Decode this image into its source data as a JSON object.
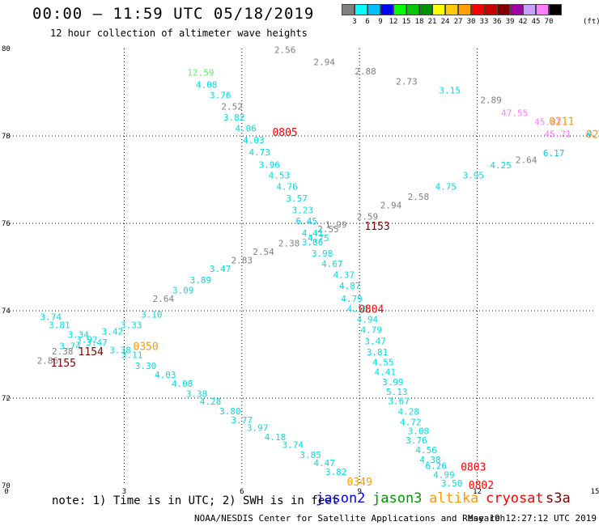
{
  "header": {
    "title": "00:00 – 11:59 UTC 05/18/2019",
    "subtitle": "12 hour collection of altimeter wave heights"
  },
  "scale": {
    "colors": [
      "#808080",
      "#00ffff",
      "#00bfff",
      "#0000ff",
      "#00ff00",
      "#00c800",
      "#009000",
      "#ffff00",
      "#ffc800",
      "#ffa000",
      "#ff0000",
      "#c80000",
      "#800000",
      "#a000a0",
      "#c8a0ff",
      "#ff80ff",
      "#000000"
    ],
    "labels": [
      "3",
      "6",
      "9",
      "12",
      "15",
      "18",
      "21",
      "24",
      "27",
      "30",
      "33",
      "36",
      "39",
      "42",
      "45",
      "70"
    ],
    "unit": "(ft)"
  },
  "map": {
    "x_ticks": [
      0,
      3,
      6,
      9,
      12,
      15
    ],
    "y_ticks": [
      70,
      72,
      74,
      76,
      78,
      80
    ],
    "x_range": [
      0,
      15
    ],
    "y_range": [
      70,
      80
    ],
    "grid": "dotted"
  },
  "observations": [
    {
      "lon": 1.13,
      "lat": 73.79,
      "v": "3.74",
      "c": "#00e0e0"
    },
    {
      "lon": 1.35,
      "lat": 73.6,
      "v": "3.81",
      "c": "#00e0e0"
    },
    {
      "lon": 1.83,
      "lat": 73.38,
      "v": "3.34",
      "c": "#00e0e0"
    },
    {
      "lon": 2.05,
      "lat": 73.27,
      "v": "3.92",
      "c": "#00e0e0"
    },
    {
      "lon": 2.3,
      "lat": 73.2,
      "v": "3.47",
      "c": "#00e0e0"
    },
    {
      "lon": 1.62,
      "lat": 73.12,
      "v": "3.74",
      "c": "#00e0e0"
    },
    {
      "lon": 2.7,
      "lat": 73.45,
      "v": "3.42",
      "c": "#00e0e0"
    },
    {
      "lon": 2.9,
      "lat": 73.03,
      "v": "3.38",
      "c": "#00e0e0"
    },
    {
      "lon": 3.18,
      "lat": 73.6,
      "v": "3.33",
      "c": "#00e0e0"
    },
    {
      "lon": 3.7,
      "lat": 73.84,
      "v": "3.10",
      "c": "#00e0e0"
    },
    {
      "lon": 4.0,
      "lat": 74.2,
      "v": "2.64",
      "c": "#808080"
    },
    {
      "lon": 4.5,
      "lat": 74.4,
      "v": "3.09",
      "c": "#00e0e0"
    },
    {
      "lon": 4.95,
      "lat": 74.63,
      "v": "3.89",
      "c": "#00e0e0"
    },
    {
      "lon": 5.45,
      "lat": 74.89,
      "v": "3.47",
      "c": "#00e0e0"
    },
    {
      "lon": 6.0,
      "lat": 75.08,
      "v": "2.83",
      "c": "#808080"
    },
    {
      "lon": 6.55,
      "lat": 75.28,
      "v": "2.54",
      "c": "#808080"
    },
    {
      "lon": 7.2,
      "lat": 75.47,
      "v": "2.38",
      "c": "#808080"
    },
    {
      "lon": 8.2,
      "lat": 75.8,
      "v": "2.55",
      "c": "#808080"
    },
    {
      "lon": 8.4,
      "lat": 75.9,
      "v": "1.99",
      "c": "#808080"
    },
    {
      "lon": 9.2,
      "lat": 76.08,
      "v": "2.59",
      "c": "#808080"
    },
    {
      "lon": 9.8,
      "lat": 76.34,
      "v": "2.94",
      "c": "#808080"
    },
    {
      "lon": 10.5,
      "lat": 76.54,
      "v": "2.58",
      "c": "#808080"
    },
    {
      "lon": 11.2,
      "lat": 76.77,
      "v": "4.75",
      "c": "#00e0e0"
    },
    {
      "lon": 11.9,
      "lat": 77.03,
      "v": "3.95",
      "c": "#00e0e0"
    },
    {
      "lon": 12.6,
      "lat": 77.26,
      "v": "4.25",
      "c": "#00e0e0"
    },
    {
      "lon": 13.25,
      "lat": 77.38,
      "v": "2.64",
      "c": "#808080"
    },
    {
      "lon": 13.95,
      "lat": 77.54,
      "v": "6.17",
      "c": "#00c8ff"
    },
    {
      "lon": 1.05,
      "lat": 72.79,
      "v": "2.86",
      "c": "#808080"
    },
    {
      "lon": 1.43,
      "lat": 73.0,
      "v": "2.38",
      "c": "#808080"
    },
    {
      "lon": 3.2,
      "lat": 72.92,
      "v": "3.11",
      "c": "#00e0e0"
    },
    {
      "lon": 3.55,
      "lat": 72.67,
      "v": "3.30",
      "c": "#00e0e0"
    },
    {
      "lon": 4.05,
      "lat": 72.46,
      "v": "4.03",
      "c": "#00e0e0"
    },
    {
      "lon": 4.48,
      "lat": 72.26,
      "v": "4.08",
      "c": "#00e0e0"
    },
    {
      "lon": 4.85,
      "lat": 72.03,
      "v": "3.38",
      "c": "#00e0e0"
    },
    {
      "lon": 5.2,
      "lat": 71.85,
      "v": "4.28",
      "c": "#00e0e0"
    },
    {
      "lon": 5.7,
      "lat": 71.63,
      "v": "3.80",
      "c": "#00e0e0"
    },
    {
      "lon": 6.0,
      "lat": 71.43,
      "v": "3.77",
      "c": "#00e0e0"
    },
    {
      "lon": 6.4,
      "lat": 71.25,
      "v": "3.97",
      "c": "#00e0e0"
    },
    {
      "lon": 6.85,
      "lat": 71.04,
      "v": "4.18",
      "c": "#00e0e0"
    },
    {
      "lon": 7.3,
      "lat": 70.86,
      "v": "3.74",
      "c": "#00e0e0"
    },
    {
      "lon": 7.75,
      "lat": 70.63,
      "v": "3.85",
      "c": "#00e0e0"
    },
    {
      "lon": 8.1,
      "lat": 70.44,
      "v": "4.47",
      "c": "#00e0e0"
    },
    {
      "lon": 8.4,
      "lat": 70.24,
      "v": "3.82",
      "c": "#00e0e0"
    },
    {
      "lon": 4.95,
      "lat": 79.38,
      "v": "12.59",
      "c": "#60f060"
    },
    {
      "lon": 5.1,
      "lat": 79.1,
      "v": "4.08",
      "c": "#00e0e0"
    },
    {
      "lon": 5.45,
      "lat": 78.86,
      "v": "3.76",
      "c": "#00e0e0"
    },
    {
      "lon": 5.75,
      "lat": 78.6,
      "v": "2.52",
      "c": "#808080"
    },
    {
      "lon": 5.8,
      "lat": 78.35,
      "v": "3.82",
      "c": "#00e0e0"
    },
    {
      "lon": 6.1,
      "lat": 78.1,
      "v": "4.06",
      "c": "#00e0e0"
    },
    {
      "lon": 6.3,
      "lat": 77.83,
      "v": "4.03",
      "c": "#00e0e0"
    },
    {
      "lon": 6.45,
      "lat": 77.56,
      "v": "4.73",
      "c": "#00e0e0"
    },
    {
      "lon": 6.7,
      "lat": 77.27,
      "v": "3.96",
      "c": "#00e0e0"
    },
    {
      "lon": 6.95,
      "lat": 77.03,
      "v": "4.53",
      "c": "#00e0e0"
    },
    {
      "lon": 7.15,
      "lat": 76.77,
      "v": "4.76",
      "c": "#00e0e0"
    },
    {
      "lon": 7.4,
      "lat": 76.5,
      "v": "3.57",
      "c": "#00e0e0"
    },
    {
      "lon": 7.55,
      "lat": 76.23,
      "v": "3.23",
      "c": "#00e0e0"
    },
    {
      "lon": 7.65,
      "lat": 75.98,
      "v": "6.45",
      "c": "#00c8ff"
    },
    {
      "lon": 7.8,
      "lat": 75.7,
      "v": "4.41",
      "c": "#00e0e0"
    },
    {
      "lon": 7.95,
      "lat": 75.59,
      "v": "4.75",
      "c": "#00e0e0"
    },
    {
      "lon": 7.8,
      "lat": 75.5,
      "v": "3.86",
      "c": "#00e0e0"
    },
    {
      "lon": 8.05,
      "lat": 75.24,
      "v": "3.98",
      "c": "#00e0e0"
    },
    {
      "lon": 8.3,
      "lat": 75.0,
      "v": "4.67",
      "c": "#00e0e0"
    },
    {
      "lon": 8.6,
      "lat": 74.75,
      "v": "4.37",
      "c": "#00e0e0"
    },
    {
      "lon": 8.75,
      "lat": 74.5,
      "v": "4.87",
      "c": "#00e0e0"
    },
    {
      "lon": 8.8,
      "lat": 74.2,
      "v": "4.79",
      "c": "#00e0e0"
    },
    {
      "lon": 8.95,
      "lat": 73.97,
      "v": "4.58",
      "c": "#00e0e0"
    },
    {
      "lon": 9.2,
      "lat": 73.73,
      "v": "4.94",
      "c": "#00e0e0"
    },
    {
      "lon": 9.3,
      "lat": 73.49,
      "v": "4.79",
      "c": "#00e0e0"
    },
    {
      "lon": 9.4,
      "lat": 73.23,
      "v": "3.47",
      "c": "#00e0e0"
    },
    {
      "lon": 9.45,
      "lat": 72.98,
      "v": "3.81",
      "c": "#00e0e0"
    },
    {
      "lon": 9.6,
      "lat": 72.75,
      "v": "4.55",
      "c": "#00e0e0"
    },
    {
      "lon": 9.65,
      "lat": 72.53,
      "v": "4.41",
      "c": "#00e0e0"
    },
    {
      "lon": 9.85,
      "lat": 72.3,
      "v": "3.99",
      "c": "#00e0e0"
    },
    {
      "lon": 9.95,
      "lat": 72.07,
      "v": "5.13",
      "c": "#00e0e0"
    },
    {
      "lon": 10.0,
      "lat": 71.86,
      "v": "3.67",
      "c": "#00e0e0"
    },
    {
      "lon": 10.25,
      "lat": 71.62,
      "v": "4.28",
      "c": "#00e0e0"
    },
    {
      "lon": 10.3,
      "lat": 71.38,
      "v": "4.72",
      "c": "#00e0e0"
    },
    {
      "lon": 10.5,
      "lat": 71.18,
      "v": "3.08",
      "c": "#00e0e0"
    },
    {
      "lon": 10.45,
      "lat": 70.96,
      "v": "3.76",
      "c": "#00e0e0"
    },
    {
      "lon": 10.7,
      "lat": 70.74,
      "v": "4.56",
      "c": "#00e0e0"
    },
    {
      "lon": 10.8,
      "lat": 70.52,
      "v": "4.38",
      "c": "#00e0e0"
    },
    {
      "lon": 10.95,
      "lat": 70.38,
      "v": "6.26",
      "c": "#00c8ff"
    },
    {
      "lon": 11.15,
      "lat": 70.18,
      "v": "4.99",
      "c": "#00e0e0"
    },
    {
      "lon": 11.35,
      "lat": 69.98,
      "v": "3.50",
      "c": "#00e0e0"
    },
    {
      "lon": 7.1,
      "lat": 79.9,
      "v": "2.56",
      "c": "#808080"
    },
    {
      "lon": 8.1,
      "lat": 79.62,
      "v": "2.94",
      "c": "#808080"
    },
    {
      "lon": 9.15,
      "lat": 79.41,
      "v": "2.88",
      "c": "#808080"
    },
    {
      "lon": 10.2,
      "lat": 79.18,
      "v": "2.73",
      "c": "#808080"
    },
    {
      "lon": 11.3,
      "lat": 78.97,
      "v": "3.15",
      "c": "#00e0e0"
    },
    {
      "lon": 12.35,
      "lat": 78.75,
      "v": "2.89",
      "c": "#808080"
    },
    {
      "lon": 12.95,
      "lat": 78.45,
      "v": "47.55",
      "c": "#ff80ff"
    },
    {
      "lon": 13.8,
      "lat": 78.25,
      "v": "45.81",
      "c": "#ff80ff"
    },
    {
      "lon": 14.05,
      "lat": 77.97,
      "v": "45.71",
      "c": "#ff80ff"
    },
    {
      "lon": 15.0,
      "lat": 77.98,
      "v": "4.2",
      "c": "#00c8ff"
    }
  ],
  "passes": [
    {
      "lon": 7.1,
      "lat": 78.0,
      "t": "0805",
      "c": "#ff0000"
    },
    {
      "lon": 9.45,
      "lat": 75.85,
      "t": "1153",
      "c": "#800000"
    },
    {
      "lon": 9.3,
      "lat": 73.95,
      "t": "0804",
      "c": "#ff0000"
    },
    {
      "lon": 2.15,
      "lat": 72.98,
      "t": "1154",
      "c": "#800000"
    },
    {
      "lon": 1.45,
      "lat": 72.72,
      "t": "1155",
      "c": "#800000"
    },
    {
      "lon": 3.55,
      "lat": 73.1,
      "t": "0350",
      "c": "#ff9900"
    },
    {
      "lon": 9.0,
      "lat": 70.0,
      "t": "0349",
      "c": "#ff9900"
    },
    {
      "lon": 11.9,
      "lat": 70.34,
      "t": "0803",
      "c": "#ff0000"
    },
    {
      "lon": 12.1,
      "lat": 69.93,
      "t": "0802",
      "c": "#ff0000"
    },
    {
      "lon": 14.15,
      "lat": 78.25,
      "t": "0211",
      "c": "#ff9900"
    },
    {
      "lon": 14.93,
      "lat": 77.95,
      "t": "02",
      "c": "#ff9900"
    }
  ],
  "note": "note: 1) Time is in UTC; 2) SWH is in feet",
  "satellites": [
    {
      "name": "jason2",
      "color": "#0000ff"
    },
    {
      "name": "jason3",
      "color": "#009900"
    },
    {
      "name": "altika",
      "color": "#ff9900"
    },
    {
      "name": "cryosat",
      "color": "#ff0000"
    },
    {
      "name": "s3a",
      "color": "#800000"
    }
  ],
  "footer": {
    "credit": "NOAA/NESDIS Center for Satellite Applications and Research",
    "timestamp": "May 19 12:27:12 UTC 2019"
  }
}
